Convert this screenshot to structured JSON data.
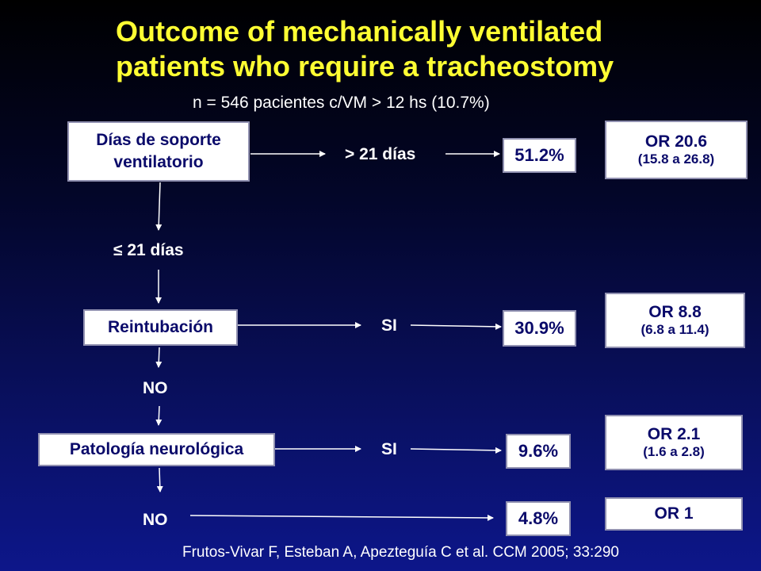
{
  "title_line1": "Outcome of mechanically ventilated",
  "title_line2": "patients who require a tracheostomy",
  "subtitle": "n = 546 pacientes c/VM > 12 hs (10.7%)",
  "nodes": {
    "dias_soporte_line1": "Días de soporte",
    "dias_soporte_line2": "ventilatorio",
    "reintubacion": "Reintubación",
    "patologia": "Patología neurológica"
  },
  "labels": {
    "gt21": "> 21 días",
    "le21": "≤ 21 días",
    "si1": "SI",
    "no1": "NO",
    "si2": "SI",
    "no2": "NO"
  },
  "outcomes": {
    "o1": "51.2%",
    "o2": "30.9%",
    "o3": "9.6%",
    "o4": "4.8%"
  },
  "odds_ratios": [
    {
      "or": "OR 20.6",
      "ci": "(15.8 a  26.8)"
    },
    {
      "or": "OR 8.8",
      "ci": "(6.8 a 11.4)"
    },
    {
      "or": "OR 2.1",
      "ci": "(1.6 a 2.8)"
    },
    {
      "or": "OR 1",
      "ci": ""
    }
  ],
  "citation": "Frutos-Vivar F, Esteban A, Apezteguía C et al. CCM 2005; 33:290"
}
